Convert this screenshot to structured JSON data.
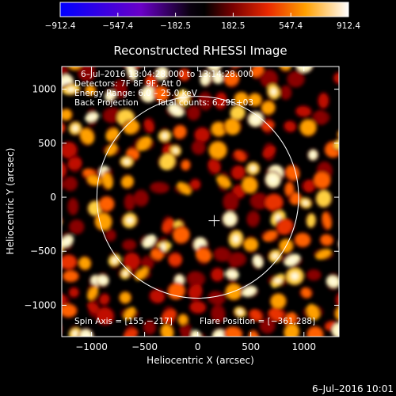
{
  "chart_data": {
    "type": "heatmap",
    "title": "Reconstructed RHESSI Image",
    "xlabel": "Heliocentric X (arcsec)",
    "ylabel": "Heliocentric Y (arcsec)",
    "xlim": [
      -1280,
      1330
    ],
    "ylim": [
      -1290,
      1210
    ],
    "x_ticks": [
      -1000,
      -500,
      0,
      500,
      1000
    ],
    "x_tick_labels": [
      "−1000",
      "−500",
      "0",
      "500",
      "1000"
    ],
    "y_ticks": [
      -1000,
      -500,
      0,
      500,
      1000
    ],
    "y_tick_labels": [
      "−1000",
      "−500",
      "0",
      "500",
      "1000"
    ],
    "colorbar": {
      "ticks": [
        -912.4,
        -547.4,
        -182.5,
        182.5,
        547.4,
        912.4
      ],
      "tick_labels": [
        "−912.4",
        "−547.4",
        "−182.5",
        "182.5",
        "547.4",
        "912.4"
      ],
      "range": [
        -912.4,
        912.4
      ]
    },
    "annotations": {
      "time_range": "6–Jul–2016 13:04:28.000 to 13:14:28.000",
      "detectors": "Detectors: 7F 8F 9F, Att 0",
      "energy_range": "Energy Range: 6.0 – 25.0 keV",
      "method": "Back Projection",
      "total_counts": "Total counts: 6.29E+03",
      "spin_axis": "Spin Axis = [155,−217]",
      "flare_position": "Flare Position = [−361,288]"
    },
    "solar_limb": {
      "center": [
        0,
        0
      ],
      "radius_arcsec": 950
    },
    "spin_axis_marker": [
      155,
      -217
    ],
    "timestamp": "6–Jul–2016 10:01"
  }
}
